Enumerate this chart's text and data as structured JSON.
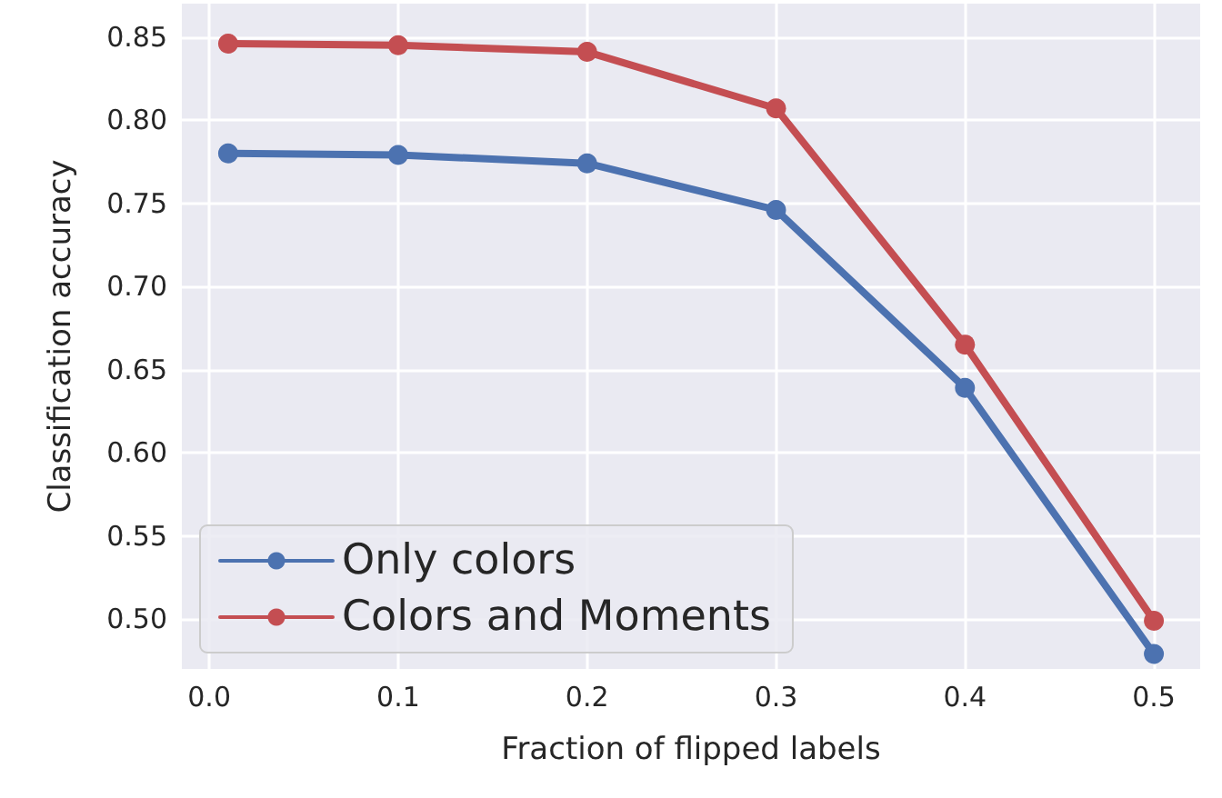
{
  "chart_data": {
    "type": "line",
    "xlabel": "Fraction of flipped labels",
    "ylabel": "Classification accuracy",
    "x": [
      0.01,
      0.1,
      0.2,
      0.3,
      0.4,
      0.5
    ],
    "series": [
      {
        "name": "Only colors",
        "color": "#4c72b0",
        "values": [
          0.78,
          0.779,
          0.774,
          0.746,
          0.639,
          0.479
        ]
      },
      {
        "name": "Colors and Moments",
        "color": "#c44e52",
        "values": [
          0.846,
          0.845,
          0.841,
          0.807,
          0.665,
          0.499
        ]
      }
    ],
    "xlim": [
      -0.0145,
      0.5245
    ],
    "ylim": [
      0.47,
      0.87
    ],
    "xticks": [
      {
        "value": 0,
        "label": "0.0"
      },
      0.1,
      0.2,
      0.3,
      0.4,
      0.5
    ],
    "yticks": [
      {
        "value": 0.5,
        "label": "0.50"
      },
      0.55,
      {
        "value": 0.6,
        "label": "0.60"
      },
      0.65,
      {
        "value": 0.7,
        "label": "0.70"
      },
      0.75,
      {
        "value": 0.8,
        "label": "0.80"
      },
      0.85
    ],
    "grid": true,
    "legend": "bottom left",
    "marker": "circle",
    "line_style": "solid"
  }
}
